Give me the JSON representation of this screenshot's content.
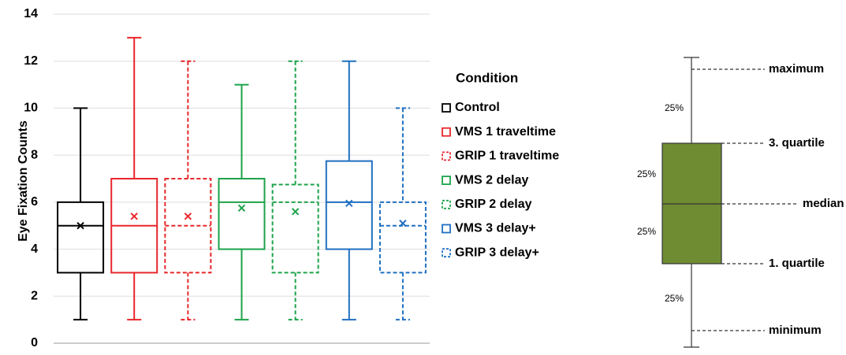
{
  "chart_data": {
    "type": "box",
    "y_label": "Eye Fixation Counts",
    "legend_title": "Condition",
    "ylim": [
      0,
      14
    ],
    "yticks": [
      0,
      2,
      4,
      6,
      8,
      10,
      12,
      14
    ],
    "grid": true,
    "series": [
      {
        "name": "Control",
        "color": "#000000",
        "dashed": false,
        "min": 1,
        "q1": 3,
        "median": 5,
        "q3": 6,
        "max": 10,
        "mean": 5
      },
      {
        "name": "VMS 1 traveltime",
        "color": "#e8262b",
        "dashed": false,
        "min": 1,
        "q1": 3,
        "median": 5,
        "q3": 7,
        "max": 13,
        "mean": 5.4
      },
      {
        "name": "GRIP 1 traveltime",
        "color": "#e8262b",
        "dashed": true,
        "min": 1,
        "q1": 3,
        "median": 5,
        "q3": 7,
        "max": 12,
        "mean": 5.4
      },
      {
        "name": "VMS 2 delay",
        "color": "#1ca34a",
        "dashed": false,
        "min": 1,
        "q1": 4,
        "median": 6,
        "q3": 7,
        "max": 11,
        "mean": 5.75
      },
      {
        "name": "GRIP 2 delay",
        "color": "#1ca34a",
        "dashed": true,
        "min": 1,
        "q1": 3,
        "median": 6,
        "q3": 6.75,
        "max": 12,
        "mean": 5.6
      },
      {
        "name": "VMS 3 delay+",
        "color": "#1f6fc0",
        "dashed": false,
        "min": 1,
        "q1": 4,
        "median": 6,
        "q3": 7.75,
        "max": 12,
        "mean": 5.95
      },
      {
        "name": "GRIP 3 delay+",
        "color": "#1f6fc0",
        "dashed": true,
        "min": 1,
        "q1": 3,
        "median": 5,
        "q3": 6,
        "max": 10,
        "mean": 5.1
      }
    ]
  },
  "schematic": {
    "share_top": "25%",
    "share_upper": "25%",
    "share_lower": "25%",
    "share_bottom": "25%",
    "maximum": "maximum",
    "q3": "3. quartile",
    "median": "median",
    "q1": "1. quartile",
    "minimum": "minimum"
  }
}
